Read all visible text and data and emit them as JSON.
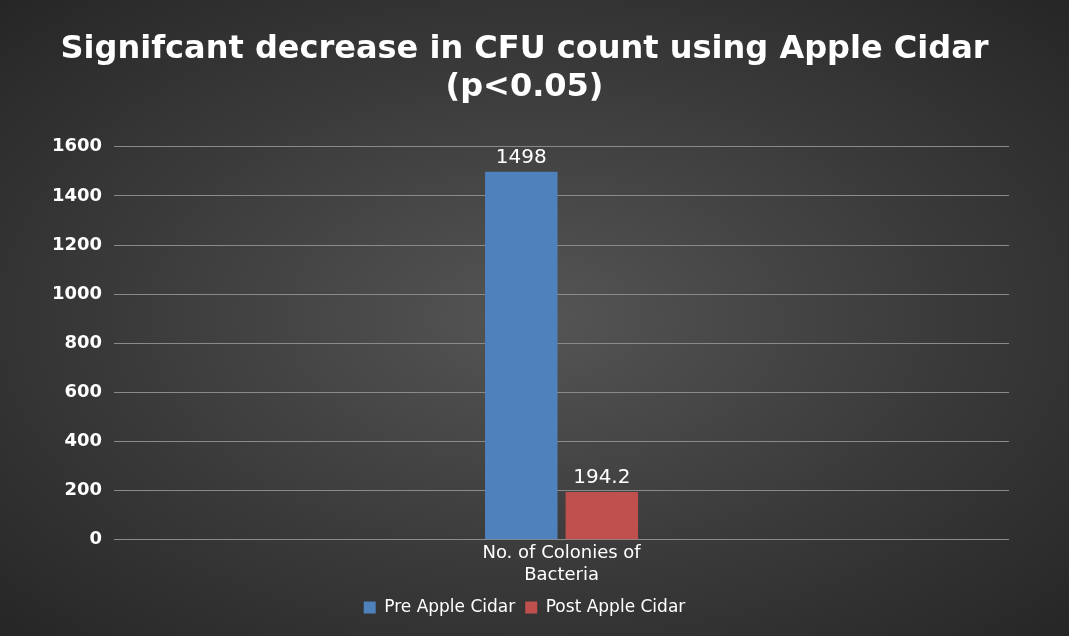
{
  "chart_data": {
    "type": "bar",
    "title": "Signifcant decrease in CFU count using Apple Cidar (p<0.05)",
    "categories": [
      "No. of Colonies of Bacteria"
    ],
    "series": [
      {
        "name": "Pre Apple Cidar",
        "color": "#4f81bd",
        "values": [
          1498
        ]
      },
      {
        "name": "Post Apple Cidar",
        "color": "#c0504d",
        "values": [
          194.2
        ]
      }
    ],
    "ylim": [
      0,
      1600
    ],
    "yticks": [
      0,
      200,
      400,
      600,
      800,
      1000,
      1200,
      1400,
      1600
    ],
    "grid": "y",
    "legend": "bottom",
    "data_labels": true
  }
}
